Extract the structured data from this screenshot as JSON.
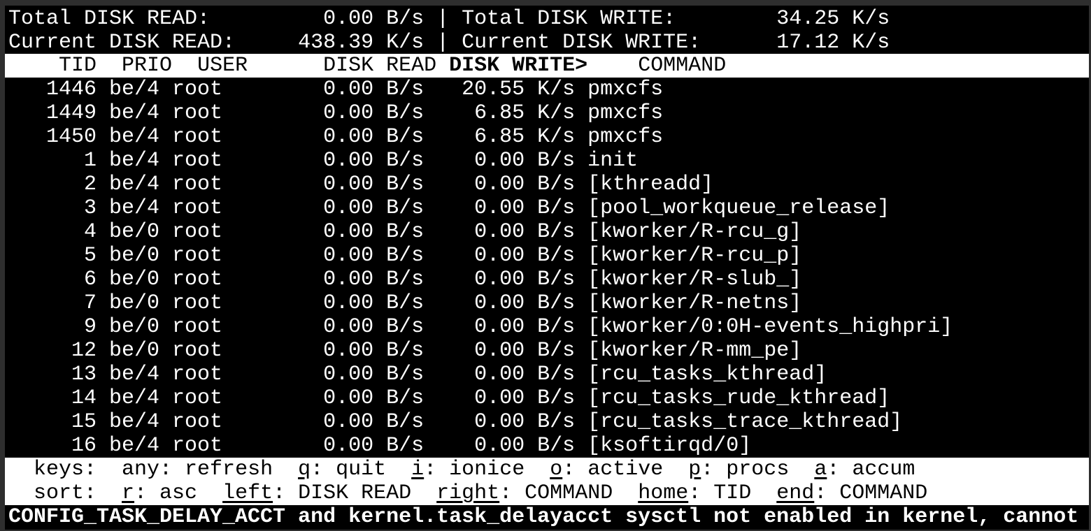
{
  "summary": {
    "total_read_label": "Total DISK READ:",
    "total_read": "0.00 B/s",
    "total_write_label": "Total DISK WRITE:",
    "total_write": "34.25 K/s",
    "current_read_label": "Current DISK READ:",
    "current_read": "438.39 K/s",
    "current_write_label": "Current DISK WRITE:",
    "current_write": "17.12 K/s",
    "separator": "|"
  },
  "columns": {
    "tid": "TID",
    "prio": "PRIO",
    "user": "USER",
    "read": "DISK READ",
    "write": "DISK WRITE>",
    "command": "COMMAND",
    "sorted": "write"
  },
  "rows": [
    {
      "tid": "1446",
      "prio": "be/4",
      "user": "root",
      "read": "0.00 B/s",
      "write": "20.55 K/s",
      "command": "pmxcfs"
    },
    {
      "tid": "1449",
      "prio": "be/4",
      "user": "root",
      "read": "0.00 B/s",
      "write": "6.85 K/s",
      "command": "pmxcfs"
    },
    {
      "tid": "1450",
      "prio": "be/4",
      "user": "root",
      "read": "0.00 B/s",
      "write": "6.85 K/s",
      "command": "pmxcfs"
    },
    {
      "tid": "1",
      "prio": "be/4",
      "user": "root",
      "read": "0.00 B/s",
      "write": "0.00 B/s",
      "command": "init"
    },
    {
      "tid": "2",
      "prio": "be/4",
      "user": "root",
      "read": "0.00 B/s",
      "write": "0.00 B/s",
      "command": "[kthreadd]"
    },
    {
      "tid": "3",
      "prio": "be/4",
      "user": "root",
      "read": "0.00 B/s",
      "write": "0.00 B/s",
      "command": "[pool_workqueue_release]"
    },
    {
      "tid": "4",
      "prio": "be/0",
      "user": "root",
      "read": "0.00 B/s",
      "write": "0.00 B/s",
      "command": "[kworker/R-rcu_g]"
    },
    {
      "tid": "5",
      "prio": "be/0",
      "user": "root",
      "read": "0.00 B/s",
      "write": "0.00 B/s",
      "command": "[kworker/R-rcu_p]"
    },
    {
      "tid": "6",
      "prio": "be/0",
      "user": "root",
      "read": "0.00 B/s",
      "write": "0.00 B/s",
      "command": "[kworker/R-slub_]"
    },
    {
      "tid": "7",
      "prio": "be/0",
      "user": "root",
      "read": "0.00 B/s",
      "write": "0.00 B/s",
      "command": "[kworker/R-netns]"
    },
    {
      "tid": "9",
      "prio": "be/0",
      "user": "root",
      "read": "0.00 B/s",
      "write": "0.00 B/s",
      "command": "[kworker/0:0H-events_highpri]"
    },
    {
      "tid": "12",
      "prio": "be/0",
      "user": "root",
      "read": "0.00 B/s",
      "write": "0.00 B/s",
      "command": "[kworker/R-mm_pe]"
    },
    {
      "tid": "13",
      "prio": "be/4",
      "user": "root",
      "read": "0.00 B/s",
      "write": "0.00 B/s",
      "command": "[rcu_tasks_kthread]"
    },
    {
      "tid": "14",
      "prio": "be/4",
      "user": "root",
      "read": "0.00 B/s",
      "write": "0.00 B/s",
      "command": "[rcu_tasks_rude_kthread]"
    },
    {
      "tid": "15",
      "prio": "be/4",
      "user": "root",
      "read": "0.00 B/s",
      "write": "0.00 B/s",
      "command": "[rcu_tasks_trace_kthread]"
    },
    {
      "tid": "16",
      "prio": "be/4",
      "user": "root",
      "read": "0.00 B/s",
      "write": "0.00 B/s",
      "command": "[ksoftirqd/0]"
    }
  ],
  "keys": {
    "label": "keys:",
    "items": [
      {
        "key": "any",
        "action": "refresh",
        "underline": false
      },
      {
        "key": "q",
        "action": "quit",
        "underline": true
      },
      {
        "key": "i",
        "action": "ionice",
        "underline": true
      },
      {
        "key": "o",
        "action": "active",
        "underline": true
      },
      {
        "key": "p",
        "action": "procs",
        "underline": true
      },
      {
        "key": "a",
        "action": "accum",
        "underline": true
      }
    ]
  },
  "sort": {
    "label": "sort:",
    "items": [
      {
        "key": "r",
        "action": "asc",
        "underline": true
      },
      {
        "key": "left",
        "action": "DISK READ",
        "underline": true
      },
      {
        "key": "right",
        "action": "COMMAND",
        "underline": true
      },
      {
        "key": "home",
        "action": "TID",
        "underline": true
      },
      {
        "key": "end",
        "action": "COMMAND",
        "underline": true
      }
    ]
  },
  "status_message": "CONFIG_TASK_DELAY_ACCT and kernel.task_delayacct sysctl not enabled in kernel, cannot"
}
